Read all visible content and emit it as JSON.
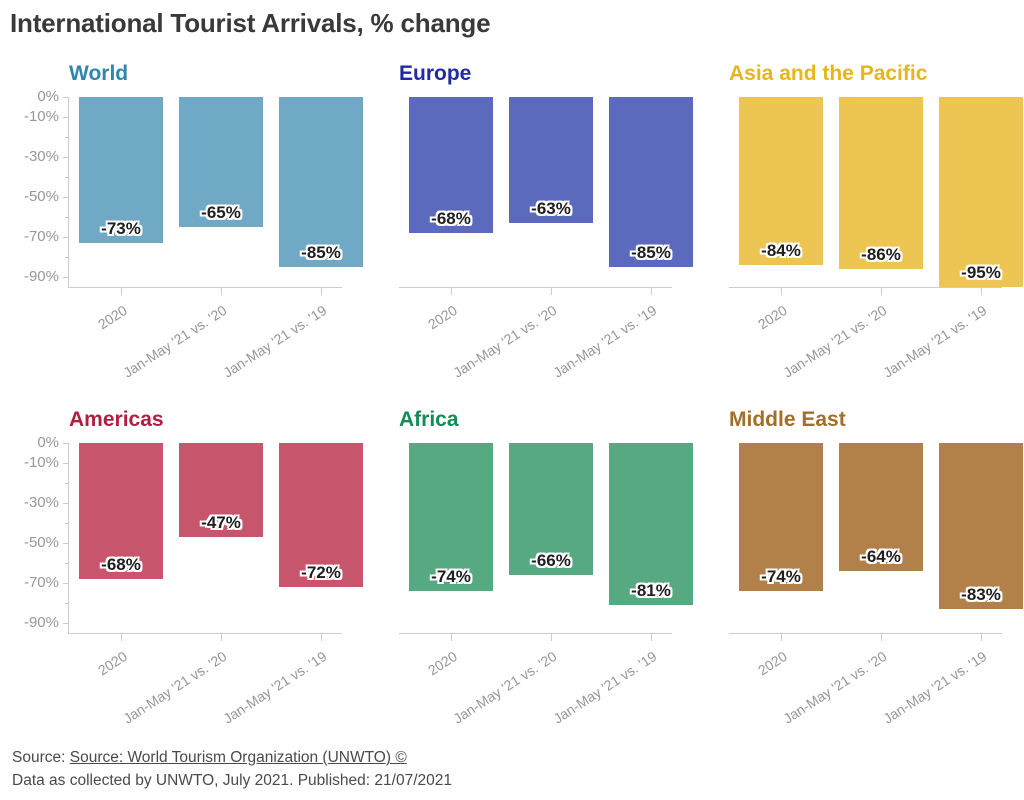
{
  "title": "International Tourist Arrivals, % change",
  "colors": {
    "axis_line": "#cccccc",
    "axis_text": "#979797",
    "value_text": "#1f1f1f",
    "footer_text": "#4a4a4a",
    "page_title_text": "#393939"
  },
  "chart_data": {
    "type": "bar",
    "layout": "small-multiples, 2 rows x 3 columns",
    "categories": [
      "2020",
      "Jan-May '21 vs. '20",
      "Jan-May '21 vs. '19"
    ],
    "ylabel": "",
    "xlabel": "",
    "ylim": [
      0,
      -95
    ],
    "yticks_major": [
      0,
      -10,
      -30,
      -50,
      -70,
      -90
    ],
    "yticks_minor": [
      -20,
      -40,
      -60,
      -80
    ],
    "value_suffix": "%",
    "grid": "off",
    "panels": [
      {
        "name": "World",
        "title_color": "#2F86AD",
        "bar_color": "#6FA9C5",
        "show_y_axis": true,
        "values": [
          -73,
          -65,
          -85
        ]
      },
      {
        "name": "Europe",
        "title_color": "#202AA7",
        "bar_color": "#5C6ABE",
        "show_y_axis": false,
        "values": [
          -68,
          -63,
          -85
        ]
      },
      {
        "name": "Asia and the Pacific",
        "title_color": "#E9B51D",
        "bar_color": "#ECC553",
        "show_y_axis": false,
        "values": [
          -84,
          -86,
          -95
        ]
      },
      {
        "name": "Americas",
        "title_color": "#B01F40",
        "bar_color": "#C7556C",
        "show_y_axis": true,
        "values": [
          -68,
          -47,
          -72
        ]
      },
      {
        "name": "Africa",
        "title_color": "#108C54",
        "bar_color": "#57A981",
        "show_y_axis": false,
        "values": [
          -74,
          -66,
          -81
        ]
      },
      {
        "name": "Middle East",
        "title_color": "#A46E29",
        "bar_color": "#B28149",
        "show_y_axis": false,
        "values": [
          -74,
          -64,
          -83
        ]
      }
    ]
  },
  "footer": {
    "source_prefix": "Source: ",
    "source_link": "Source: World Tourism Organization (UNWTO) ©",
    "note": "Data as collected by UNWTO, July 2021. Published: 21/07/2021"
  }
}
